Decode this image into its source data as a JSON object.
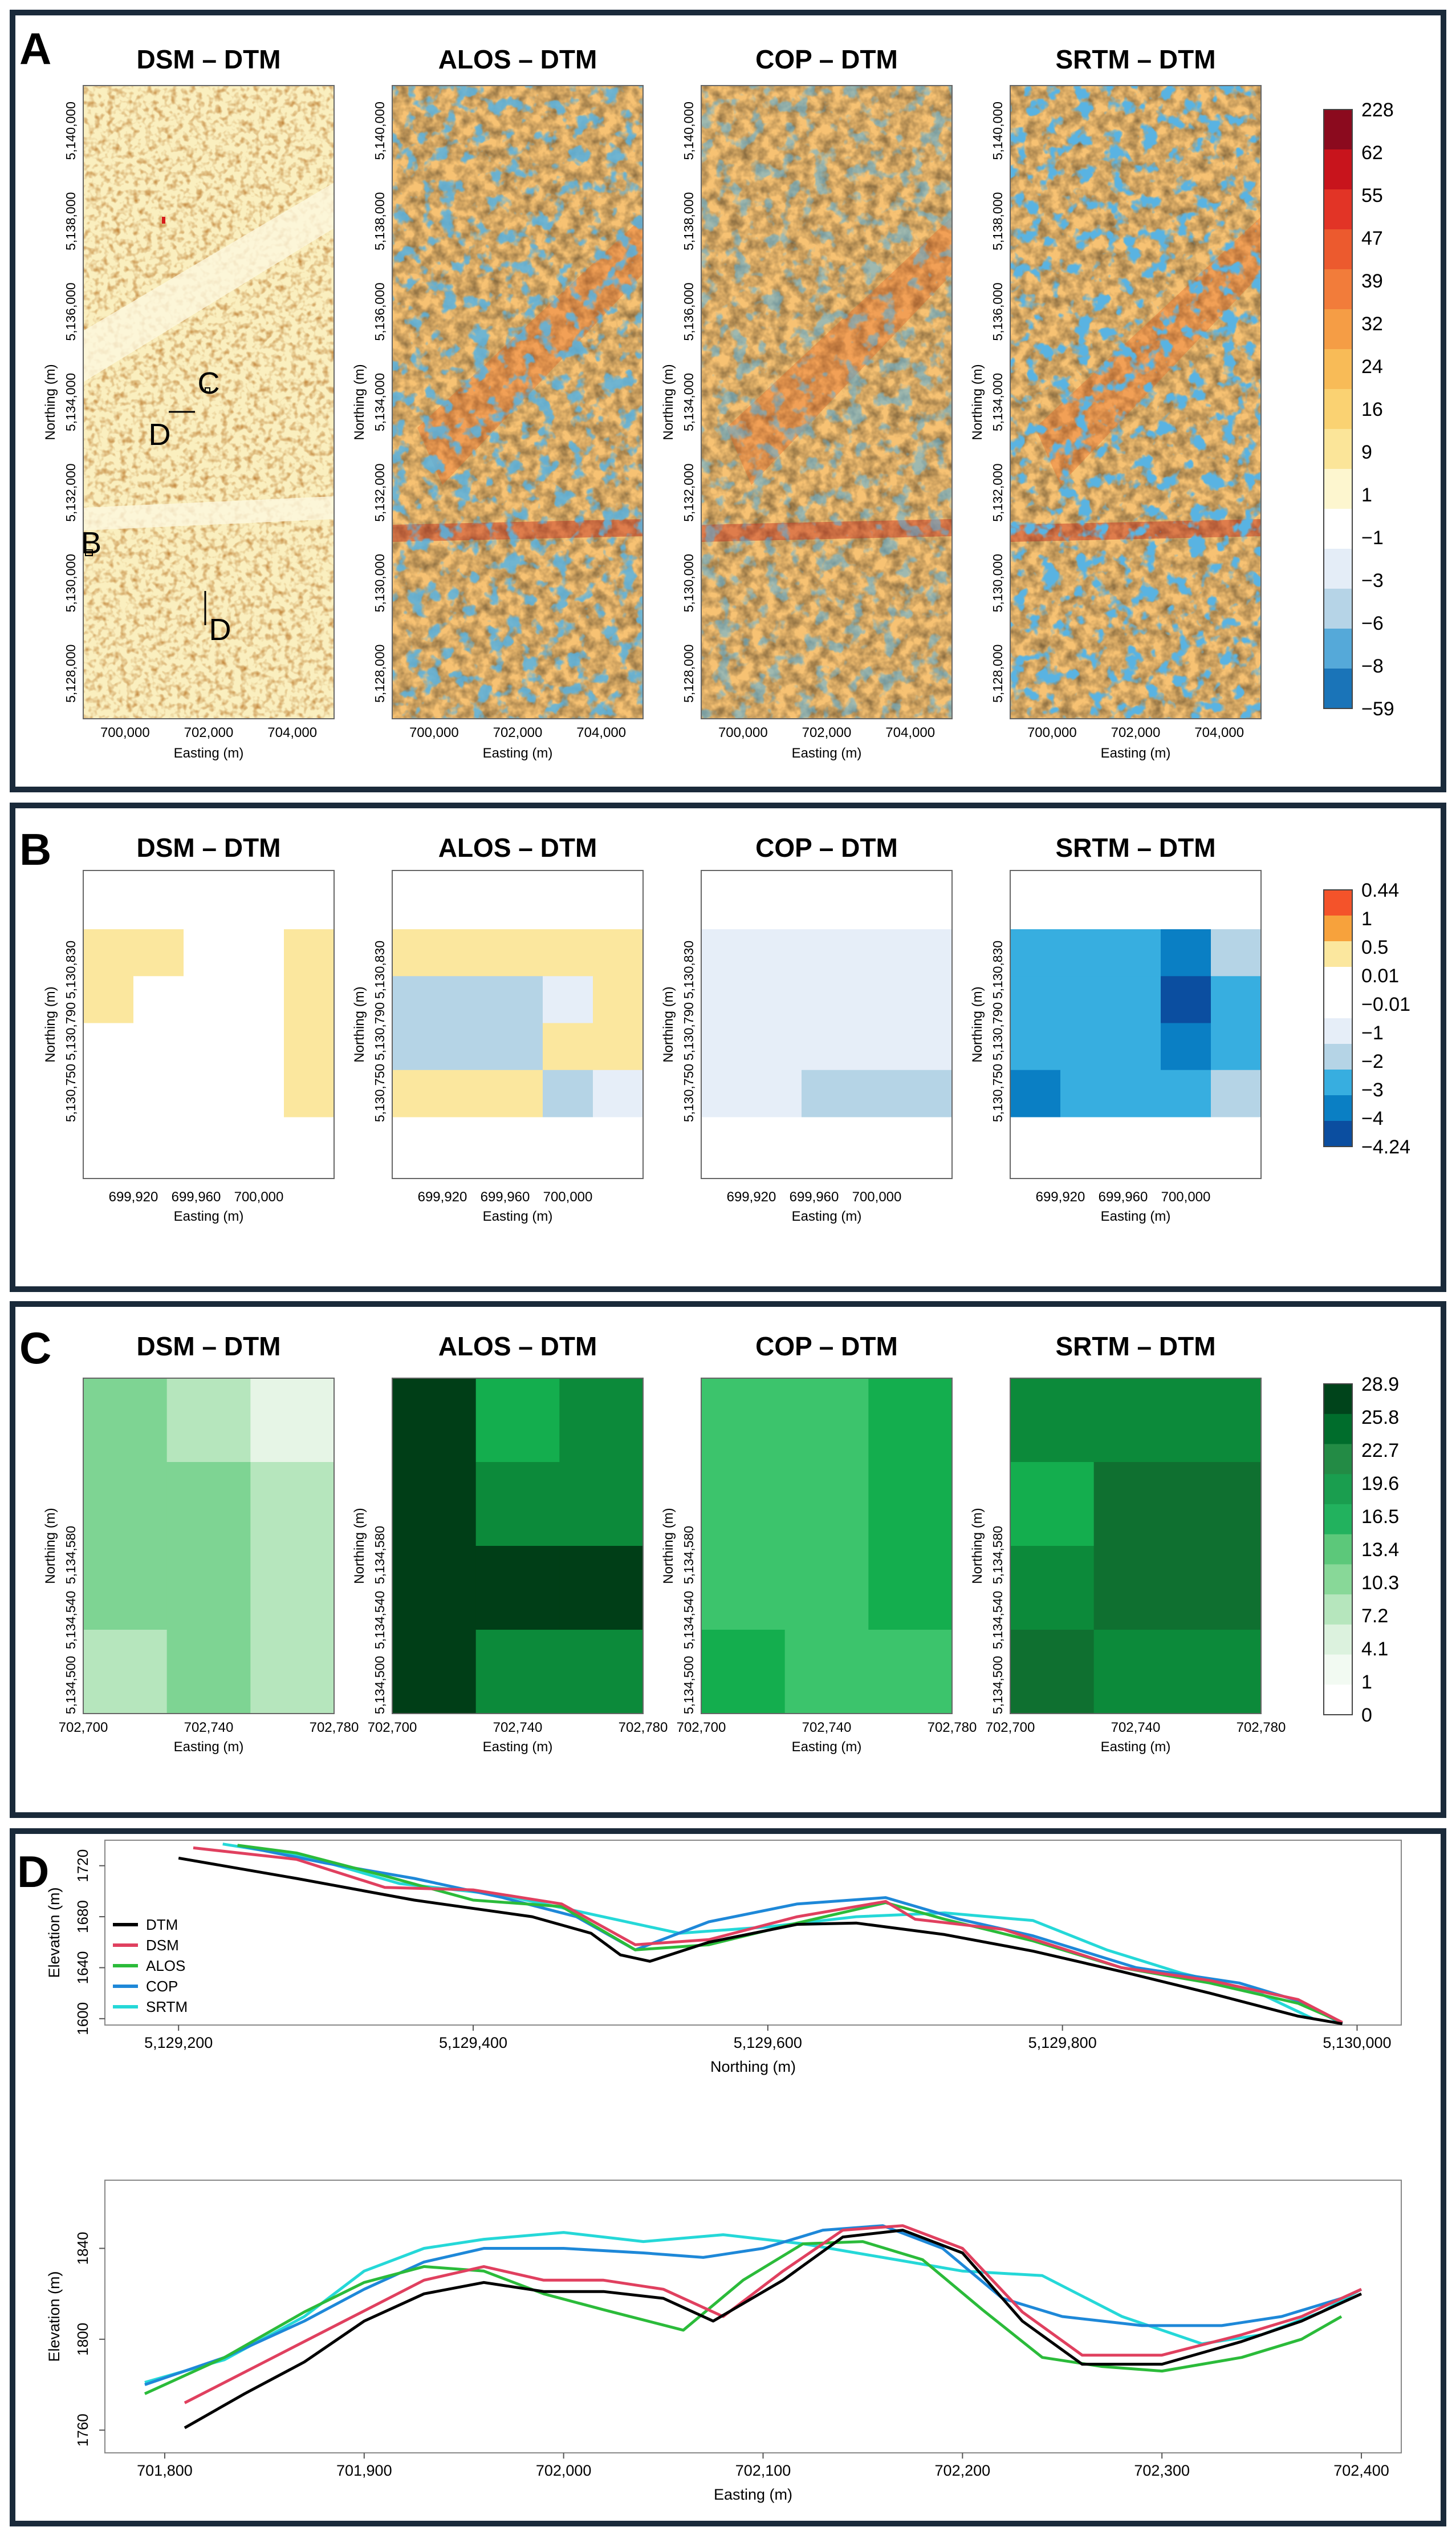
{
  "figure": {
    "panel_a": {
      "letter": "A",
      "titles": [
        "DSM – DTM",
        "ALOS – DTM",
        "COP – DTM",
        "SRTM – DTM"
      ],
      "ylabel": "Northing (m)",
      "xlabel": "Easting (m)",
      "yticks": [
        "5,128,000",
        "5,130,000",
        "5,132,000",
        "5,134,000",
        "5,136,000",
        "5,138,000",
        "5,140,000"
      ],
      "xticks": [
        "700,000",
        "702,000",
        "704,000"
      ],
      "annotations": [
        "C",
        "D",
        "B",
        "D"
      ],
      "legend_labels": [
        "228",
        "62",
        "55",
        "47",
        "39",
        "32",
        "24",
        "16",
        "9",
        "1",
        "−1",
        "−3",
        "−6",
        "−8",
        "−59"
      ],
      "legend_colors": [
        "#8b0a1e",
        "#c8141c",
        "#e23426",
        "#ec5a2e",
        "#f27c3a",
        "#f59d45",
        "#f8bb57",
        "#fad272",
        "#fbe599",
        "#fdf6cf",
        "#ffffff",
        "#e4edf7",
        "#b6d4e7",
        "#55a9d9",
        "#1a74b8"
      ]
    },
    "panel_b": {
      "letter": "B",
      "titles": [
        "DSM – DTM",
        "ALOS – DTM",
        "COP – DTM",
        "SRTM – DTM"
      ],
      "ylabel": "Northing (m)",
      "xlabel": "Easting (m)",
      "yticks": [
        "5,130,750",
        "5,130,790",
        "5,130,830"
      ],
      "xticks": [
        "699,920",
        "699,960",
        "700,000"
      ],
      "legend_labels": [
        "0.44",
        "1",
        "0.5",
        "0.01",
        "−0.01",
        "−1",
        "−2",
        "−3",
        "−4",
        "−4.24"
      ],
      "legend_colors": [
        "#f4532a",
        "#f7a23c",
        "#fbe79e",
        "#ffffff",
        "#ffffff",
        "#e6eef8",
        "#b5d4e6",
        "#37aee0",
        "#0a7fc4",
        "#0b4ea0"
      ],
      "grids": [
        [
          [
            "Y",
            "Y",
            "W",
            "W",
            "Y"
          ],
          [
            "Y",
            "W",
            "W",
            "W",
            "Y"
          ],
          [
            "W",
            "W",
            "W",
            "W",
            "Y"
          ],
          [
            "W",
            "W",
            "W",
            "W",
            "Y"
          ]
        ],
        [
          [
            "Y",
            "Y",
            "Y",
            "Y",
            "Y"
          ],
          [
            "L",
            "L",
            "L",
            "P",
            "Y"
          ],
          [
            "L",
            "L",
            "L",
            "Y",
            "Y"
          ],
          [
            "Y",
            "Y",
            "Y",
            "L",
            "P"
          ]
        ],
        [
          [
            "P",
            "P",
            "P",
            "P",
            "P"
          ],
          [
            "P",
            "P",
            "P",
            "P",
            "P"
          ],
          [
            "P",
            "P",
            "P",
            "P",
            "P"
          ],
          [
            "P",
            "P",
            "L",
            "L",
            "L"
          ]
        ],
        [
          [
            "S",
            "S",
            "S",
            "D",
            "L"
          ],
          [
            "S",
            "S",
            "S",
            "N",
            "S"
          ],
          [
            "S",
            "S",
            "S",
            "D",
            "S"
          ],
          [
            "D",
            "S",
            "S",
            "S",
            "L"
          ]
        ]
      ]
    },
    "panel_c": {
      "letter": "C",
      "titles": [
        "DSM – DTM",
        "ALOS – DTM",
        "COP – DTM",
        "SRTM – DTM"
      ],
      "ylabel": "Northing (m)",
      "xlabel": "Easting (m)",
      "yticks": [
        "5,134,500",
        "5,134,540",
        "5,134,580"
      ],
      "xticks": [
        "702,700",
        "702,740",
        "702,780"
      ],
      "legend_labels": [
        "28.9",
        "25.8",
        "22.7",
        "19.6",
        "16.5",
        "13.4",
        "10.3",
        "7.2",
        "4.1",
        "1",
        "0"
      ],
      "legend_colors": [
        "#00441b",
        "#006d2c",
        "#238b45",
        "#1a9e4f",
        "#22b25e",
        "#5cc87a",
        "#88d898",
        "#b6e6bd",
        "#dcf2de",
        "#f2faf2",
        "#ffffff"
      ],
      "grids": [
        [
          [
            "5",
            "4",
            "3"
          ],
          [
            "5",
            "5",
            "4"
          ],
          [
            "5",
            "5",
            "4"
          ],
          [
            "4",
            "5",
            "4"
          ]
        ],
        [
          [
            "10",
            "7",
            "8"
          ],
          [
            "10",
            "8",
            "8"
          ],
          [
            "10",
            "10",
            "10"
          ],
          [
            "10",
            "8",
            "8"
          ]
        ],
        [
          [
            "6",
            "6",
            "7"
          ],
          [
            "6",
            "6",
            "7"
          ],
          [
            "6",
            "6",
            "7"
          ],
          [
            "7",
            "6",
            "6"
          ]
        ],
        [
          [
            "8",
            "8",
            "8"
          ],
          [
            "7",
            "9",
            "9"
          ],
          [
            "8",
            "9",
            "9"
          ],
          [
            "9",
            "8",
            "8"
          ]
        ]
      ]
    },
    "panel_d": {
      "letter": "D",
      "legend": [
        "DTM",
        "DSM",
        "ALOS",
        "COP",
        "SRTM"
      ]
    }
  },
  "chart_data": [
    {
      "type": "line",
      "title": "",
      "xlabel": "Northing (m)",
      "ylabel": "Elevation (m)",
      "xlim": [
        5129150,
        5130030
      ],
      "ylim": [
        1595,
        1740
      ],
      "xticks": [
        5129200,
        5129400,
        5129600,
        5129800,
        5130000
      ],
      "xtick_labels": [
        "5,129,200",
        "5,129,400",
        "5,129,600",
        "5,129,800",
        "5,130,000"
      ],
      "yticks": [
        1600,
        1640,
        1680,
        1720
      ],
      "ytick_labels": [
        "1600",
        "1640",
        "1680",
        "1720"
      ],
      "series": [
        {
          "name": "DTM",
          "color": "#000000",
          "x": [
            5129200,
            5129280,
            5129360,
            5129440,
            5129480,
            5129500,
            5129520,
            5129560,
            5129620,
            5129660,
            5129720,
            5129780,
            5129840,
            5129900,
            5129960,
            5129990
          ],
          "y": [
            1726,
            1710,
            1693,
            1680,
            1667,
            1650,
            1645,
            1660,
            1674,
            1675,
            1666,
            1653,
            1637,
            1620,
            1602,
            1596
          ]
        },
        {
          "name": "DSM",
          "color": "#e0405f",
          "x": [
            5129210,
            5129280,
            5129340,
            5129400,
            5129460,
            5129510,
            5129560,
            5129620,
            5129680,
            5129700,
            5129760,
            5129840,
            5129900,
            5129960,
            5129990
          ],
          "y": [
            1734,
            1725,
            1703,
            1701,
            1690,
            1658,
            1662,
            1680,
            1692,
            1678,
            1670,
            1640,
            1630,
            1615,
            1597
          ]
        },
        {
          "name": "ALOS",
          "color": "#2bbb3a",
          "x": [
            5129240,
            5129280,
            5129340,
            5129400,
            5129460,
            5129510,
            5129560,
            5129620,
            5129680,
            5129720,
            5129780,
            5129840,
            5129900,
            5129960,
            5129990
          ],
          "y": [
            1736,
            1730,
            1712,
            1693,
            1688,
            1654,
            1658,
            1675,
            1691,
            1678,
            1661,
            1640,
            1628,
            1612,
            1597
          ]
        },
        {
          "name": "COP",
          "color": "#1e88d8",
          "x": [
            5129240,
            5129300,
            5129360,
            5129420,
            5129470,
            5129510,
            5129560,
            5129620,
            5129680,
            5129730,
            5129780,
            5129850,
            5129920,
            5129960,
            5129990
          ],
          "y": [
            1736,
            1722,
            1710,
            1695,
            1680,
            1654,
            1676,
            1690,
            1695,
            1678,
            1665,
            1640,
            1628,
            1614,
            1596
          ]
        },
        {
          "name": "SRTM",
          "color": "#25d8d8",
          "x": [
            5129230,
            5129290,
            5129350,
            5129420,
            5129480,
            5129540,
            5129600,
            5129660,
            5129720,
            5129780,
            5129830,
            5129880,
            5129930,
            5129970
          ],
          "y": [
            1737,
            1726,
            1706,
            1697,
            1682,
            1667,
            1672,
            1680,
            1683,
            1677,
            1654,
            1636,
            1622,
            1600
          ]
        }
      ]
    },
    {
      "type": "line",
      "title": "",
      "xlabel": "Easting (m)",
      "ylabel": "Elevation (m)",
      "xlim": [
        701770,
        702420
      ],
      "ylim": [
        1750,
        1870
      ],
      "xticks": [
        701800,
        701900,
        702000,
        702100,
        702200,
        702300,
        702400
      ],
      "xtick_labels": [
        "701,800",
        "701,900",
        "702,000",
        "702,100",
        "702,200",
        "702,300",
        "702,400"
      ],
      "yticks": [
        1760,
        1800,
        1840
      ],
      "ytick_labels": [
        "1760",
        "1800",
        "1840"
      ],
      "series": [
        {
          "name": "DTM",
          "color": "#000000",
          "x": [
            701810,
            701840,
            701870,
            701900,
            701930,
            701960,
            701990,
            702020,
            702050,
            702075,
            702110,
            702140,
            702170,
            702200,
            702230,
            702260,
            702300,
            702340,
            702370,
            702400
          ],
          "y": [
            1761,
            1776,
            1790,
            1808,
            1820,
            1825,
            1821,
            1821,
            1818,
            1808,
            1826,
            1845,
            1848,
            1838,
            1808,
            1789,
            1789,
            1799,
            1808,
            1820
          ]
        },
        {
          "name": "DSM",
          "color": "#e0405f",
          "x": [
            701810,
            701850,
            701890,
            701930,
            701960,
            701990,
            702020,
            702050,
            702080,
            702110,
            702140,
            702170,
            702200,
            702230,
            702260,
            702300,
            702340,
            702370,
            702400
          ],
          "y": [
            1772,
            1790,
            1808,
            1826,
            1832,
            1826,
            1826,
            1822,
            1810,
            1830,
            1848,
            1850,
            1840,
            1812,
            1793,
            1793,
            1802,
            1810,
            1822
          ]
        },
        {
          "name": "ALOS",
          "color": "#2bbb3a",
          "x": [
            701790,
            701830,
            701870,
            701900,
            701930,
            701960,
            701990,
            702020,
            702060,
            702090,
            702120,
            702150,
            702180,
            702210,
            702240,
            702270,
            702300,
            702340,
            702370,
            702390
          ],
          "y": [
            1776,
            1792,
            1812,
            1825,
            1832,
            1830,
            1820,
            1813,
            1804,
            1826,
            1842,
            1843,
            1835,
            1813,
            1792,
            1788,
            1786,
            1792,
            1800,
            1810
          ]
        },
        {
          "name": "COP",
          "color": "#1e88d8",
          "x": [
            701790,
            701830,
            701870,
            701900,
            701930,
            701960,
            702000,
            702040,
            702070,
            702100,
            702130,
            702160,
            702190,
            702220,
            702250,
            702290,
            702330,
            702360,
            702390
          ],
          "y": [
            1780,
            1792,
            1808,
            1822,
            1834,
            1840,
            1840,
            1838,
            1836,
            1840,
            1848,
            1850,
            1840,
            1818,
            1810,
            1806,
            1806,
            1810,
            1818
          ]
        },
        {
          "name": "SRTM",
          "color": "#25d8d8",
          "x": [
            701790,
            701830,
            701870,
            701900,
            701930,
            701960,
            702000,
            702040,
            702080,
            702120,
            702160,
            702200,
            702240,
            702280,
            702320,
            702350,
            702380,
            702400
          ],
          "y": [
            1781,
            1791,
            1810,
            1830,
            1840,
            1844,
            1847,
            1843,
            1846,
            1842,
            1836,
            1830,
            1828,
            1810,
            1798,
            1802,
            1812,
            1822
          ]
        }
      ]
    }
  ]
}
